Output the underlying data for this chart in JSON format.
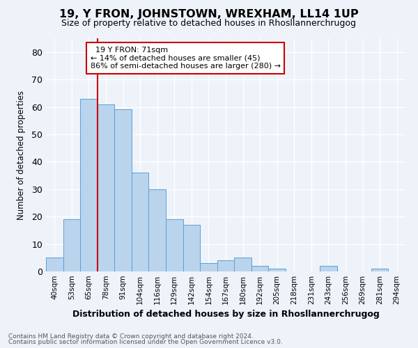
{
  "title": "19, Y FRON, JOHNSTOWN, WREXHAM, LL14 1UP",
  "subtitle": "Size of property relative to detached houses in Rhosllannerchrugog",
  "xlabel": "Distribution of detached houses by size in Rhosllannerchrugog",
  "ylabel": "Number of detached properties",
  "footer1": "Contains HM Land Registry data © Crown copyright and database right 2024.",
  "footer2": "Contains public sector information licensed under the Open Government Licence v3.0.",
  "annotation_title": "19 Y FRON: 71sqm",
  "annotation_line1": "← 14% of detached houses are smaller (45)",
  "annotation_line2": "86% of semi-detached houses are larger (280) →",
  "bar_labels": [
    "40sqm",
    "53sqm",
    "65sqm",
    "78sqm",
    "91sqm",
    "104sqm",
    "116sqm",
    "129sqm",
    "142sqm",
    "154sqm",
    "167sqm",
    "180sqm",
    "192sqm",
    "205sqm",
    "218sqm",
    "231sqm",
    "243sqm",
    "256sqm",
    "269sqm",
    "281sqm",
    "294sqm"
  ],
  "bar_values": [
    5,
    19,
    63,
    61,
    59,
    36,
    30,
    19,
    17,
    3,
    4,
    5,
    2,
    1,
    0,
    0,
    2,
    0,
    0,
    1,
    0
  ],
  "bar_color": "#bad4ed",
  "bar_edge_color": "#5a9fd4",
  "ylim": [
    0,
    85
  ],
  "yticks": [
    0,
    10,
    20,
    30,
    40,
    50,
    60,
    70,
    80
  ],
  "bg_color": "#eef2f9",
  "plot_bg_color": "#eef2f9",
  "grid_color": "#ffffff",
  "annotation_box_color": "#ffffff",
  "annotation_border_color": "#cc0000",
  "vline_color": "#cc0000",
  "vline_x_index": 2
}
